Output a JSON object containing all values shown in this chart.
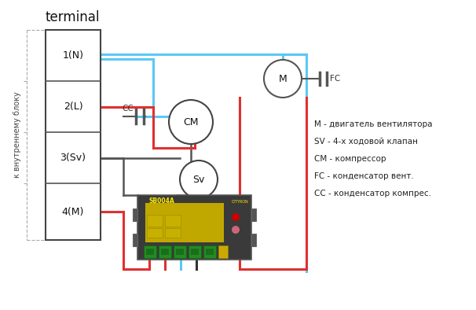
{
  "title": "terminal",
  "bg_color": "#ffffff",
  "terminal_labels": [
    "1(N)",
    "2(L)",
    "3(Sv)",
    "4(M)"
  ],
  "legend_lines": [
    "М - двигатель вентилятора",
    "SV - 4-х ходовой клапан",
    "СМ - компрессор",
    "FC - конденсатор вент.",
    "СС - конденсатор компрес."
  ],
  "color_blue": "#5bc8f5",
  "color_red": "#e03030",
  "color_black": "#333333",
  "color_wire_gray": "#555555",
  "color_gray_box": "#3a3a3a",
  "color_yellow_pcb": "#c8b800",
  "color_green_terminal": "#2a8a2a"
}
